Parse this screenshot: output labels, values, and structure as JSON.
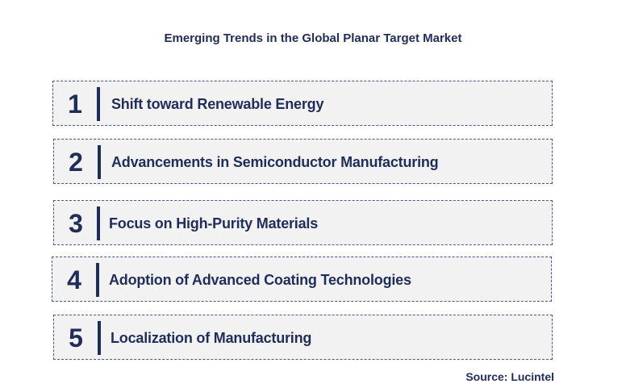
{
  "title": "Emerging Trends in the Global Planar Target Market",
  "trends": [
    {
      "number": "1",
      "label": "Shift toward Renewable Energy"
    },
    {
      "number": "2",
      "label": "Advancements in Semiconductor Manufacturing"
    },
    {
      "number": "3",
      "label": "Focus on High-Purity Materials"
    },
    {
      "number": "4",
      "label": "Adoption of Advanced Coating Technologies"
    },
    {
      "number": "5",
      "label": "Localization of Manufacturing"
    }
  ],
  "source": "Source: Lucintel",
  "colors": {
    "text": "#1f2d5a",
    "box_background": "#f2f2f2",
    "box_border": "#4a5a86"
  }
}
